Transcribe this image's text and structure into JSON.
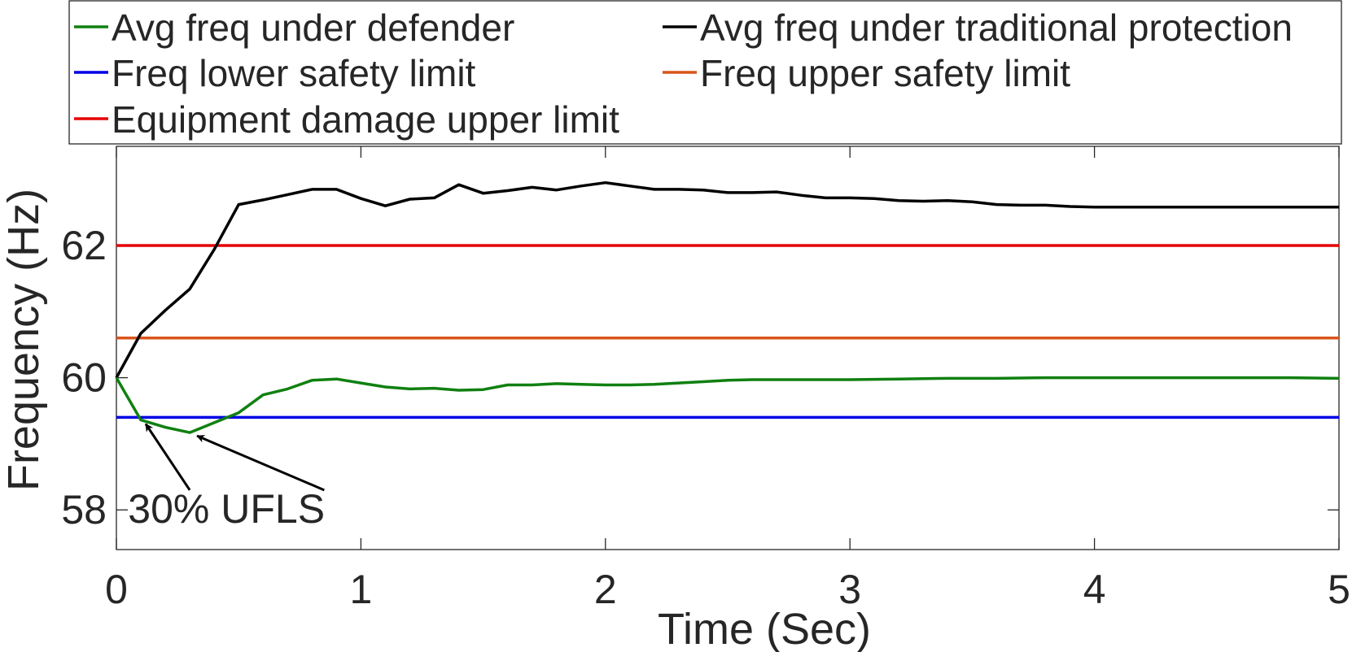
{
  "chart_data": {
    "type": "line",
    "xlabel": "Time (Sec)",
    "ylabel": "Frequency (Hz)",
    "xlim": [
      0,
      5
    ],
    "ylim": [
      57.4,
      63.5
    ],
    "xticks": [
      0,
      1,
      2,
      3,
      4,
      5
    ],
    "yticks": [
      58,
      60,
      62
    ],
    "grid": false,
    "legend_position": "top",
    "series": [
      {
        "name": "Avg freq under defender",
        "color": "#108010",
        "x": [
          0,
          0.1,
          0.2,
          0.3,
          0.4,
          0.5,
          0.6,
          0.7,
          0.8,
          0.9,
          1.0,
          1.1,
          1.2,
          1.3,
          1.4,
          1.5,
          1.6,
          1.7,
          1.8,
          1.9,
          2.0,
          2.1,
          2.2,
          2.3,
          2.4,
          2.5,
          2.6,
          2.7,
          2.8,
          2.9,
          3.0,
          3.2,
          3.4,
          3.6,
          3.8,
          4.0,
          4.2,
          4.4,
          4.6,
          4.8,
          5.0
        ],
        "y": [
          60.0,
          59.36,
          59.25,
          59.17,
          59.32,
          59.47,
          59.74,
          59.83,
          59.96,
          59.98,
          59.92,
          59.86,
          59.83,
          59.84,
          59.81,
          59.82,
          59.89,
          59.89,
          59.91,
          59.9,
          59.89,
          59.89,
          59.9,
          59.92,
          59.94,
          59.96,
          59.97,
          59.97,
          59.97,
          59.97,
          59.97,
          59.98,
          59.99,
          59.99,
          60.0,
          60.0,
          60.0,
          60.0,
          60.0,
          60.0,
          59.99
        ]
      },
      {
        "name": "Avg freq under traditional protection",
        "color": "#000000",
        "x": [
          0,
          0.1,
          0.2,
          0.3,
          0.4,
          0.5,
          0.6,
          0.7,
          0.8,
          0.9,
          1.0,
          1.1,
          1.2,
          1.3,
          1.4,
          1.5,
          1.6,
          1.7,
          1.8,
          1.9,
          2.0,
          2.1,
          2.2,
          2.3,
          2.4,
          2.5,
          2.6,
          2.7,
          2.8,
          2.9,
          3.0,
          3.1,
          3.2,
          3.3,
          3.4,
          3.5,
          3.6,
          3.7,
          3.8,
          3.9,
          4.0,
          4.2,
          4.4,
          4.6,
          4.8,
          5.0
        ],
        "y": [
          60.0,
          60.67,
          61.02,
          61.34,
          61.94,
          62.62,
          62.69,
          62.77,
          62.85,
          62.85,
          62.71,
          62.6,
          62.7,
          62.72,
          62.92,
          62.79,
          62.83,
          62.88,
          62.84,
          62.9,
          62.95,
          62.9,
          62.85,
          62.85,
          62.84,
          62.8,
          62.8,
          62.81,
          62.76,
          62.72,
          62.72,
          62.71,
          62.68,
          62.67,
          62.68,
          62.66,
          62.62,
          62.61,
          62.61,
          62.59,
          62.58,
          62.58,
          62.58,
          62.58,
          62.58,
          62.58
        ]
      },
      {
        "name": "Freq lower safety limit",
        "color": "#0000e6",
        "x": [
          0,
          5
        ],
        "y": [
          59.4,
          59.4
        ]
      },
      {
        "name": "Freq upper safety limit",
        "color": "#d9541a",
        "x": [
          0,
          5
        ],
        "y": [
          60.6,
          60.6
        ]
      },
      {
        "name": "Equipment damage upper limit",
        "color": "#e60000",
        "x": [
          0,
          5
        ],
        "y": [
          62.0,
          62.0
        ]
      }
    ],
    "annotations": [
      {
        "text": "30% UFLS",
        "anchor": [
          0.45,
          58.05
        ],
        "arrows": [
          {
            "tail": [
              0.3,
              58.3
            ],
            "head": [
              0.12,
              59.3
            ]
          },
          {
            "tail": [
              0.85,
              58.3
            ],
            "head": [
              0.33,
              59.12
            ]
          }
        ]
      }
    ]
  }
}
